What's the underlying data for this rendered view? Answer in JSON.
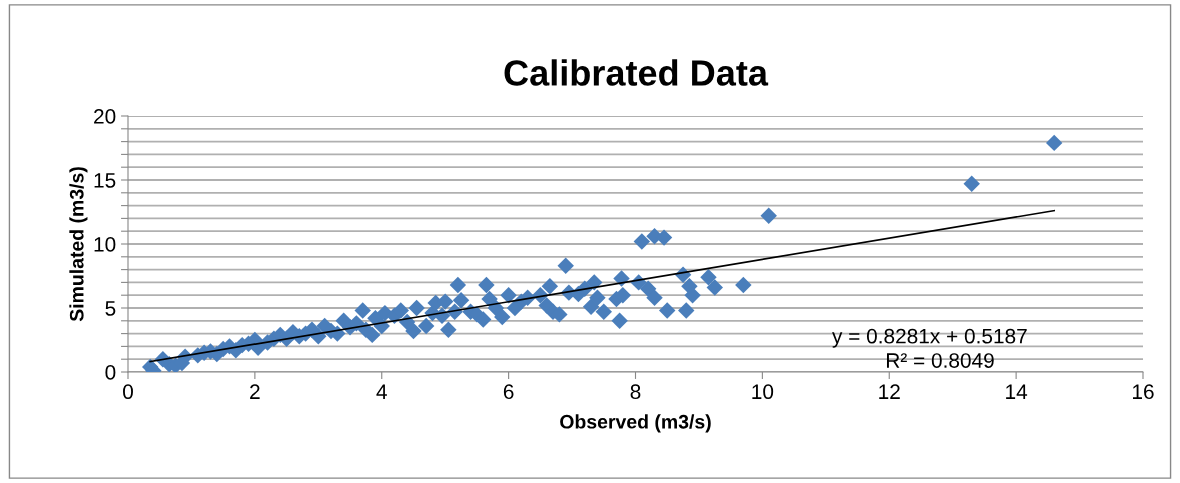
{
  "chart_data": {
    "type": "scatter",
    "title": "Calibrated Data",
    "xlabel": "Observed (m3/s)",
    "ylabel": "Simulated (m3/s)",
    "xlim": [
      0,
      16
    ],
    "xticks": [
      0,
      2,
      4,
      6,
      8,
      10,
      12,
      14,
      16
    ],
    "ylim": [
      0,
      20
    ],
    "yticks": [
      0,
      {
        "value": 1,
        "label": null
      },
      {
        "value": 2,
        "label": null
      },
      {
        "value": 3,
        "label": null
      },
      {
        "value": 4,
        "label": null
      },
      5,
      {
        "value": 6,
        "label": null
      },
      {
        "value": 7,
        "label": null
      },
      {
        "value": 8,
        "label": null
      },
      {
        "value": 9,
        "label": null
      },
      10,
      {
        "value": 11,
        "label": null
      },
      {
        "value": 12,
        "label": null
      },
      {
        "value": 13,
        "label": null
      },
      {
        "value": 14,
        "label": null
      },
      15,
      {
        "value": 16,
        "label": null
      },
      {
        "value": 17,
        "label": null
      },
      {
        "value": 18,
        "label": null
      },
      {
        "value": 19,
        "label": null
      },
      20
    ],
    "grid": "y",
    "legend": false,
    "annotations": [
      "y = 0.8281x + 0.5187",
      "R² = 0.8049"
    ],
    "series": [
      {
        "color": "#4a7ebb",
        "marker": "diamond",
        "x": [
          0.35,
          0.4,
          0.55,
          0.65,
          0.75,
          0.9,
          0.85,
          1.1,
          1.2,
          1.3,
          1.4,
          1.5,
          1.6,
          1.7,
          1.8,
          1.9,
          2.0,
          2.05,
          2.2,
          2.3,
          2.4,
          2.5,
          2.6,
          2.7,
          2.8,
          2.9,
          3.0,
          3.1,
          3.2,
          3.3,
          3.4,
          3.5,
          3.6,
          3.7,
          3.75,
          3.85,
          3.9,
          4.0,
          4.05,
          4.2,
          4.3,
          4.4,
          4.5,
          4.55,
          4.7,
          4.8,
          4.85,
          4.95,
          5.0,
          5.05,
          5.15,
          5.2,
          5.25,
          5.4,
          5.5,
          5.6,
          5.65,
          5.7,
          5.8,
          5.9,
          6.0,
          6.1,
          6.2,
          6.3,
          6.5,
          6.6,
          6.65,
          6.7,
          6.8,
          6.9,
          6.95,
          7.1,
          7.2,
          7.3,
          7.35,
          7.4,
          7.5,
          7.7,
          7.75,
          7.78,
          7.8,
          8.05,
          8.1,
          8.2,
          8.3,
          8.3,
          8.45,
          8.5,
          8.75,
          8.8,
          8.85,
          8.9,
          9.15,
          9.25,
          9.7,
          10.1,
          13.3,
          14.6
        ],
        "values": [
          0.4,
          0.1,
          1.0,
          0.6,
          0.5,
          1.2,
          0.7,
          1.3,
          1.5,
          1.6,
          1.4,
          1.8,
          2.0,
          1.7,
          2.1,
          2.2,
          2.5,
          1.9,
          2.3,
          2.6,
          2.9,
          2.6,
          3.1,
          2.8,
          3.0,
          3.3,
          2.8,
          3.6,
          3.2,
          3.0,
          4.0,
          3.5,
          3.8,
          4.8,
          3.3,
          2.9,
          4.2,
          3.6,
          4.6,
          4.4,
          4.8,
          3.9,
          3.2,
          5.0,
          3.6,
          4.6,
          5.4,
          4.4,
          5.5,
          3.3,
          4.7,
          6.8,
          5.6,
          4.7,
          4.5,
          4.1,
          6.8,
          5.7,
          5.0,
          4.3,
          6.0,
          5.0,
          5.5,
          5.8,
          6.0,
          5.2,
          6.7,
          4.7,
          4.5,
          8.3,
          6.2,
          6.1,
          6.5,
          5.1,
          7.0,
          5.8,
          4.7,
          5.7,
          4.0,
          7.3,
          6.0,
          7.0,
          10.2,
          6.5,
          10.6,
          5.8,
          10.5,
          4.8,
          7.6,
          4.8,
          6.7,
          6.0,
          7.4,
          6.6,
          6.8,
          12.2,
          14.7,
          17.9
        ]
      },
      {
        "type": "line",
        "color": "#000000",
        "marker": "none",
        "line_style": "solid",
        "x": [
          0.35,
          14.6
        ],
        "values": [
          0.81,
          12.61
        ]
      }
    ]
  }
}
